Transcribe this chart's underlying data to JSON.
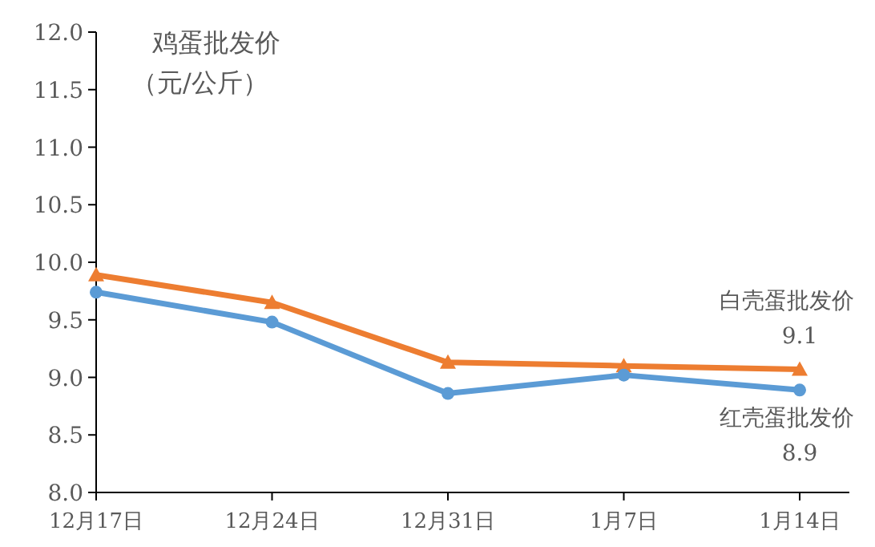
{
  "chart_data": {
    "type": "line",
    "title": "鸡蛋批发价",
    "subtitle": "（元/公斤）",
    "categories": [
      "12月17日",
      "12月24日",
      "12月31日",
      "1月7日",
      "1月14日"
    ],
    "series": [
      {
        "name": "白壳蛋批发价",
        "color": "#ed7d31",
        "marker": "triangle",
        "values": [
          9.89,
          9.65,
          9.13,
          9.1,
          9.07
        ],
        "value_labels": [
          null,
          null,
          null,
          null,
          "9.1"
        ]
      },
      {
        "name": "红壳蛋批发价",
        "color": "#5b9bd5",
        "marker": "circle",
        "values": [
          9.74,
          9.48,
          8.86,
          9.02,
          8.89
        ],
        "value_labels": [
          null,
          null,
          null,
          null,
          "8.9"
        ]
      }
    ],
    "ylim": [
      8.0,
      12.0
    ],
    "yticks": [
      {
        "value": 8,
        "label": "8.0"
      },
      {
        "value": 8.5,
        "label": "8.5"
      },
      {
        "value": 9,
        "label": "9.0"
      },
      {
        "value": 9.5,
        "label": "9.5"
      },
      {
        "value": 10,
        "label": "10.0"
      },
      {
        "value": 10.5,
        "label": "10.5"
      },
      {
        "value": 11,
        "label": "11.0"
      },
      {
        "value": 11.5,
        "label": "11.5"
      },
      {
        "value": 12,
        "label": "12.0"
      }
    ],
    "grid": false,
    "legend": false
  }
}
